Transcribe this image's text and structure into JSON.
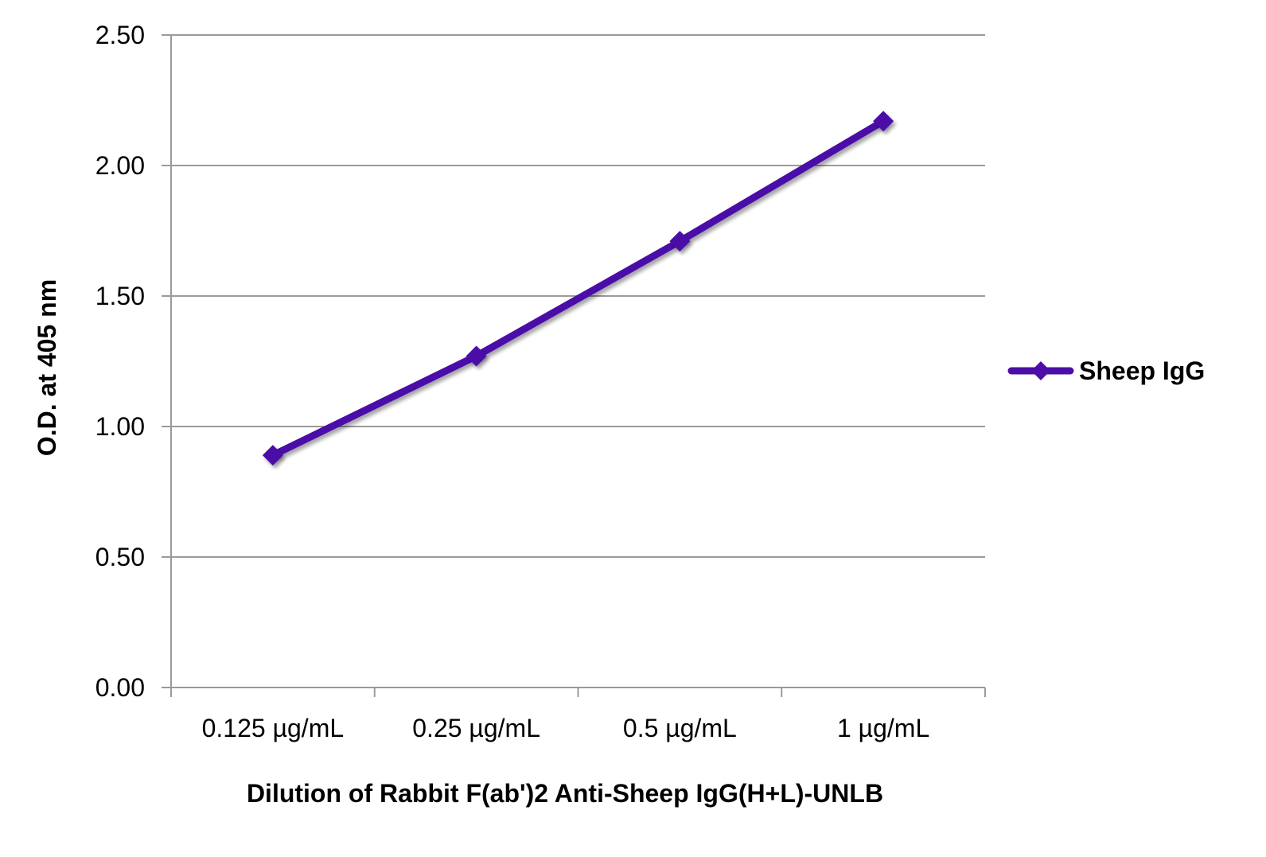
{
  "chart_data": {
    "type": "line",
    "title": "",
    "xlabel": "Dilution of Rabbit F(ab')2 Anti-Sheep IgG(H+L)-UNLB",
    "ylabel": "O.D. at 405 nm",
    "categories": [
      "0.125 µg/mL",
      "0.25 µg/mL",
      "0.5 µg/mL",
      "1 µg/mL"
    ],
    "ylim": [
      0,
      2.5
    ],
    "yticks": [
      "0.00",
      "0.50",
      "1.00",
      "1.50",
      "2.00",
      "2.50"
    ],
    "grid": true,
    "legend_position": "right",
    "series": [
      {
        "name": "Sheep IgG",
        "values": [
          0.89,
          1.27,
          1.71,
          2.17
        ],
        "color": "#4B0FA8",
        "marker": "diamond"
      }
    ]
  }
}
